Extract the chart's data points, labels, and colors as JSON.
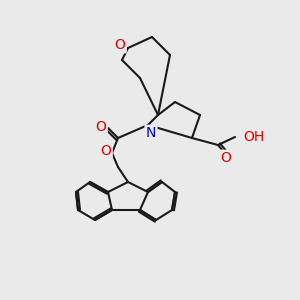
{
  "bg_color": "#eaeaea",
  "bond_color": "#1a1a1a",
  "bond_width": 1.5,
  "atom_colors": {
    "O": "#e00000",
    "N": "#0000dd",
    "C": "#1a1a1a",
    "H": "#1a1a1a"
  },
  "font_size": 9,
  "fig_size": [
    3.0,
    3.0
  ],
  "dpi": 100
}
